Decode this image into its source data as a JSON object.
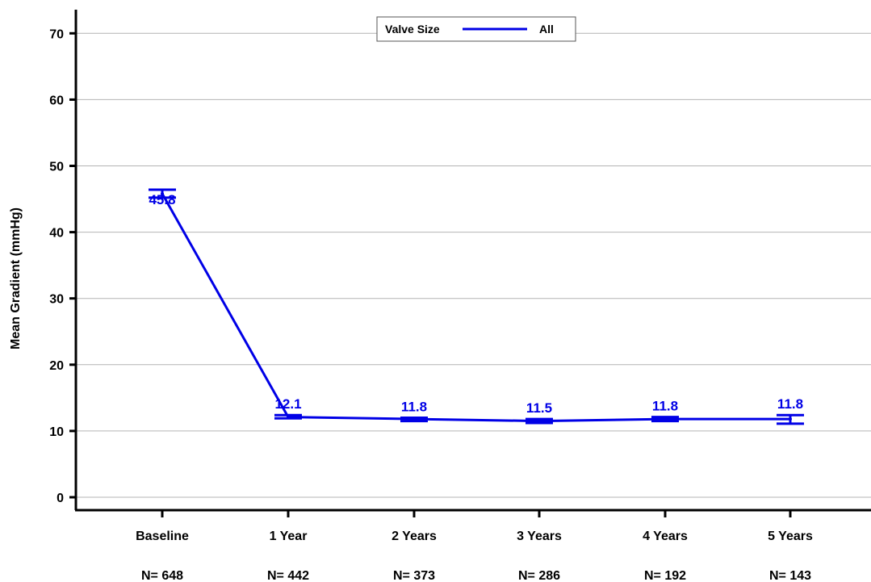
{
  "chart_data": {
    "type": "line",
    "title": "",
    "xlabel": "",
    "ylabel": "Mean Gradient (mmHg)",
    "ylim": [
      -2,
      73
    ],
    "yticks": [
      0,
      10,
      20,
      30,
      40,
      50,
      60,
      70
    ],
    "grid": true,
    "legend": {
      "title": "Valve Size",
      "position": "top-center"
    },
    "categories": [
      "Baseline",
      "1 Year",
      "2 Years",
      "3 Years",
      "4 Years",
      "5 Years"
    ],
    "n_labels": [
      "N= 648",
      "N= 442",
      "N= 373",
      "N= 286",
      "N= 192",
      "N= 143"
    ],
    "series": [
      {
        "name": "All",
        "color": "#0000e6",
        "values": [
          45.8,
          12.1,
          11.8,
          11.5,
          11.8,
          11.8
        ],
        "data_labels": [
          "45.8",
          "12.1",
          "11.8",
          "11.5",
          "11.8",
          "11.8"
        ],
        "error_low": [
          45.2,
          11.9,
          11.5,
          11.2,
          11.5,
          11.1
        ],
        "error_high": [
          46.4,
          12.4,
          12.0,
          11.8,
          12.1,
          12.4
        ]
      }
    ]
  }
}
